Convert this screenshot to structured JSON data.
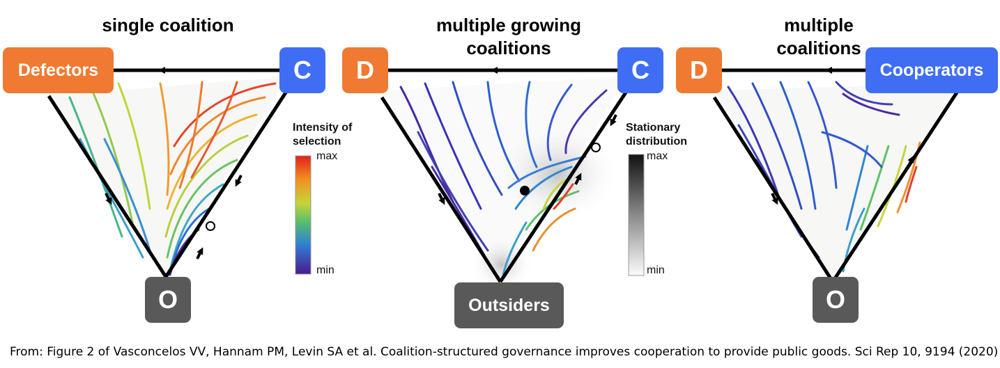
{
  "panels": [
    {
      "title_lines": [
        "single coalition"
      ],
      "vertices": {
        "left": "Defectors",
        "right": "C",
        "bottom": "O"
      },
      "colorbar": {
        "title_lines": [
          "Intensity of",
          "selection"
        ],
        "max_label": "max",
        "min_label": "min",
        "type": "rainbow"
      }
    },
    {
      "title_lines": [
        "multiple growing",
        "coalitions"
      ],
      "vertices": {
        "left": "D",
        "right": "C",
        "bottom": "Outsiders"
      },
      "colorbar": {
        "title_lines": [
          "Stationary",
          "distribution"
        ],
        "max_label": "max",
        "min_label": "min",
        "type": "grayscale"
      }
    },
    {
      "title_lines": [
        "multiple",
        "coalitions"
      ],
      "vertices": {
        "left": "D",
        "right": "Cooperators",
        "bottom": "O"
      }
    }
  ],
  "colors": {
    "defectors": "#f07a31",
    "cooperators": "#3f6ef5",
    "outsiders": "#595959"
  },
  "caption": "From: Figure 2 of Vasconcelos VV, Hannam PM, Levin SA et al. Coalition-structured governance improves cooperation to provide public goods. Sci Rep 10, 9194 (2020)"
}
